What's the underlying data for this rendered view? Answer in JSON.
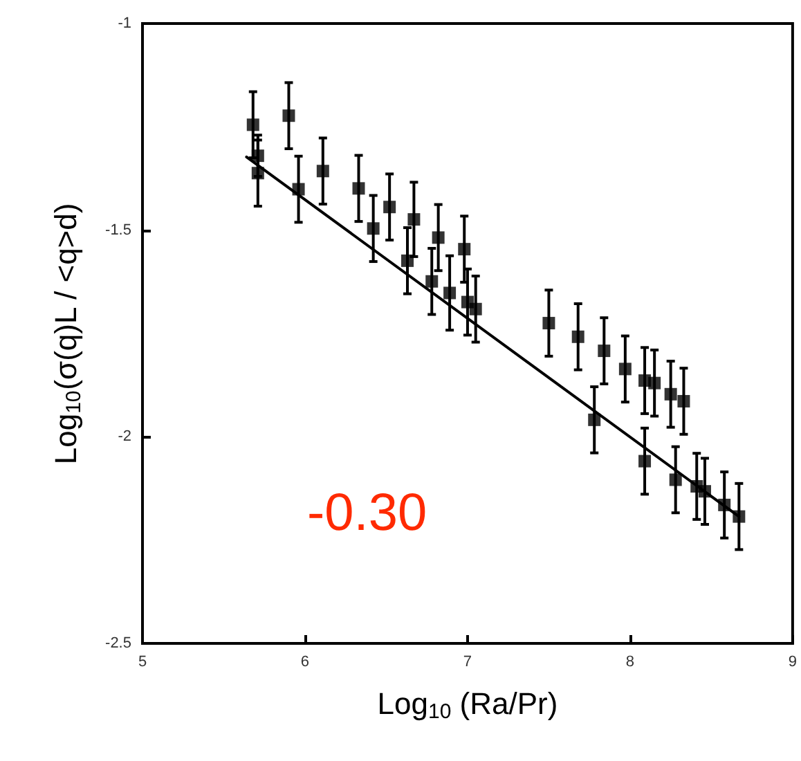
{
  "chart_data": {
    "type": "scatter",
    "xlabel": "Log$_{10}$ (Ra/Pr)",
    "ylabel": "Log$_{10}$(σ(q)L / <q>d)",
    "annotations": [
      "-0.30"
    ],
    "xlim": [
      5,
      9
    ],
    "xticks": [
      5,
      6,
      7,
      8,
      9
    ],
    "ylim": [
      -2.5,
      -1
    ],
    "yticks": [
      -2.5,
      -2,
      -1.5,
      -1
    ],
    "grid": false,
    "series": [
      {
        "color": "#000000",
        "marker": "square",
        "x": [
          5.68,
          5.71,
          5.71,
          5.9,
          5.96,
          6.11,
          6.33,
          6.42,
          6.52,
          6.63,
          6.67,
          6.78,
          6.82,
          6.89,
          6.98,
          7.0,
          7.05,
          7.5,
          7.68,
          7.84,
          7.97,
          8.09,
          8.15,
          8.25,
          8.33,
          7.78,
          8.09,
          8.28,
          8.41,
          8.46,
          8.58,
          8.67
        ],
        "values": [
          -1.245,
          -1.32,
          -1.362,
          -1.223,
          -1.401,
          -1.357,
          -1.399,
          -1.496,
          -1.444,
          -1.574,
          -1.474,
          -1.624,
          -1.518,
          -1.652,
          -1.546,
          -1.674,
          -1.691,
          -1.725,
          -1.758,
          -1.792,
          -1.836,
          -1.864,
          -1.87,
          -1.897,
          -1.914,
          -1.959,
          -2.059,
          -2.104,
          -2.12,
          -2.132,
          -2.165,
          -2.193
        ],
        "errors": [
          0.08,
          0.05,
          0.08,
          0.08,
          0.08,
          0.08,
          0.08,
          0.08,
          0.08,
          0.08,
          0.09,
          0.08,
          0.08,
          0.09,
          0.08,
          0.08,
          0.08,
          0.08,
          0.08,
          0.08,
          0.08,
          0.08,
          0.08,
          0.08,
          0.08,
          0.08,
          0.08,
          0.08,
          0.08,
          0.08,
          0.08,
          0.08
        ]
      },
      {
        "type": "line",
        "color": "#000000",
        "marker": "none",
        "line_style": "solid",
        "x": [
          5.64,
          8.67
        ],
        "values": [
          -1.323,
          -2.193
        ]
      }
    ]
  }
}
